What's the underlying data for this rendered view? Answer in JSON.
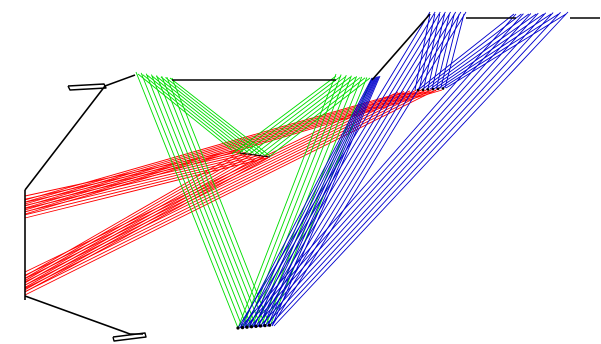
{
  "diagram": {
    "kind": "ray-trace",
    "colors": {
      "frame": "#000000",
      "red_rays": "#ff0000",
      "green_rays": "#00dd00",
      "blue_rays": "#0000cc",
      "background": "#ffffff"
    },
    "ray_groups": [
      "red",
      "green",
      "blue"
    ],
    "rays_per_bundle": 8
  }
}
